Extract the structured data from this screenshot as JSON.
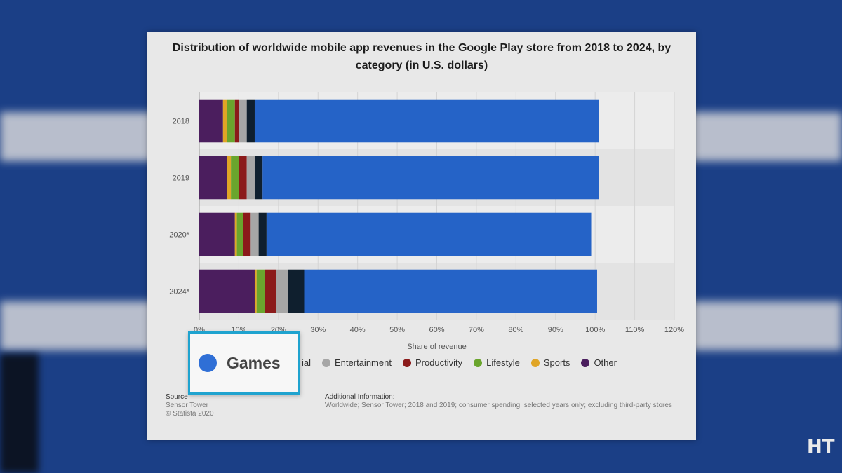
{
  "chart_data": {
    "type": "bar",
    "orientation": "horizontal-stacked",
    "title": "Distribution of worldwide mobile app revenues in the Google Play store from 2018 to 2024, by category (in U.S. dollars)",
    "xlabel": "Share of revenue",
    "ylabel": "",
    "xlim": [
      0,
      120
    ],
    "x_ticks": [
      "0%",
      "10%",
      "20%",
      "30%",
      "40%",
      "50%",
      "60%",
      "70%",
      "80%",
      "90%",
      "100%",
      "110%",
      "120%"
    ],
    "x_tick_values": [
      0,
      10,
      20,
      30,
      40,
      50,
      60,
      70,
      80,
      90,
      100,
      110,
      120
    ],
    "categories": [
      "2018",
      "2019",
      "2020*",
      "2024*"
    ],
    "series": [
      {
        "name": "Other",
        "color": "#4b1e5e",
        "values": [
          6,
          7,
          9,
          14
        ]
      },
      {
        "name": "Sports",
        "color": "#e0a526",
        "values": [
          1,
          1,
          0.5,
          0.5
        ]
      },
      {
        "name": "Lifestyle",
        "color": "#6aa52d",
        "values": [
          2,
          2,
          1.5,
          2
        ]
      },
      {
        "name": "Productivity",
        "color": "#8b1a1a",
        "values": [
          1,
          2,
          2,
          3
        ]
      },
      {
        "name": "Entertainment",
        "color": "#a6a6a6",
        "values": [
          2,
          2,
          2,
          3
        ]
      },
      {
        "name": "Social",
        "color": "#0f1f2e",
        "values": [
          2,
          2,
          2,
          4
        ]
      },
      {
        "name": "Games",
        "color": "#2563c7",
        "values": [
          87,
          85,
          82,
          74
        ]
      }
    ],
    "legend_position": "bottom"
  },
  "legend": {
    "partial_social": "ial",
    "entertainment": "Entertainment",
    "productivity": "Productivity",
    "lifestyle": "Lifestyle",
    "sports": "Sports",
    "other": "Other"
  },
  "callout": {
    "label": "Games",
    "color": "#2f6fd6"
  },
  "source": {
    "heading": "Source",
    "line1": "Sensor Tower",
    "line2": "© Statista 2020"
  },
  "additional": {
    "heading": "Additional Information:",
    "text": "Worldwide; Sensor Tower; 2018 and 2019; consumer spending; selected years only; excluding third-party stores"
  },
  "logo": {
    "text": "HT"
  }
}
